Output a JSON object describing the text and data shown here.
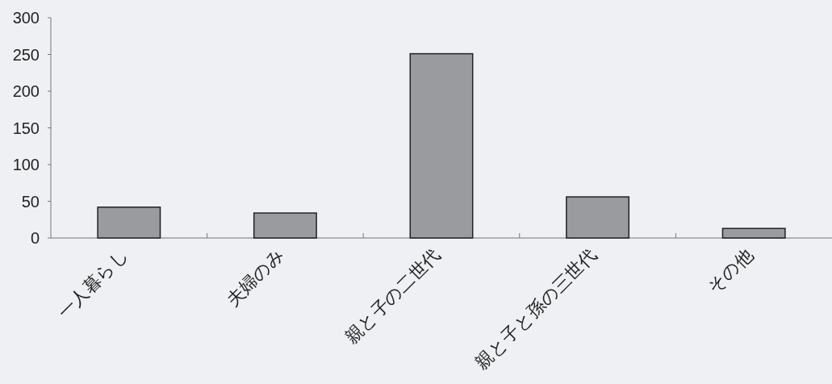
{
  "chart_data": {
    "type": "bar",
    "categories": [
      "一人暮らし",
      "夫婦のみ",
      "親と子の二世代",
      "親と子と孫の三世代",
      "その他"
    ],
    "values": [
      42,
      34,
      251,
      56,
      13
    ],
    "color": "#9a9b9e",
    "ylim": [
      0,
      300
    ],
    "yticks": [
      0,
      50,
      100,
      150,
      200,
      250,
      300
    ],
    "grid": false
  }
}
